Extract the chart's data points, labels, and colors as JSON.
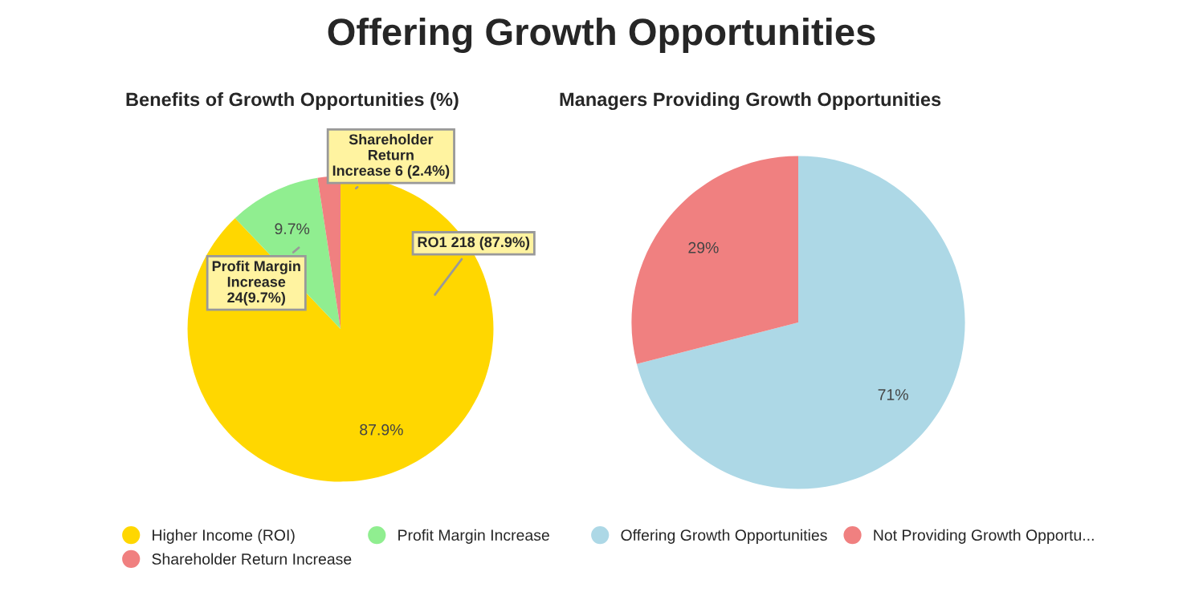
{
  "chart_data": [
    {
      "type": "pie",
      "title": "Offering Growth Opportunities",
      "subtitle": "Benefits of Growth Opportunities (%)",
      "categories": [
        "Higher Income (ROI)",
        "Profit Margin Increase",
        "Shareholder Return Increase"
      ],
      "values": [
        87.9,
        9.7,
        2.4
      ],
      "colors": [
        "#ffd700",
        "#90ee90",
        "#f08080"
      ],
      "value_labels": [
        "87.9%",
        "9.7%",
        null
      ],
      "annotations": [
        "RO1 218 (87.9%)",
        "Profit Margin\nIncrease\n24(9.7%)",
        "Shareholder\nReturn\nIncrease 6 (2.4%)"
      ],
      "legend": "bottom"
    },
    {
      "type": "pie",
      "subtitle": "Managers Providing Growth Opportunities",
      "categories": [
        "Offering Growth Opportunities",
        "Not Providing Growth Opportu..."
      ],
      "values": [
        71,
        29
      ],
      "colors": [
        "#add8e6",
        "#f08080"
      ],
      "value_labels": [
        "71%",
        "29%"
      ],
      "legend": "bottom"
    }
  ]
}
